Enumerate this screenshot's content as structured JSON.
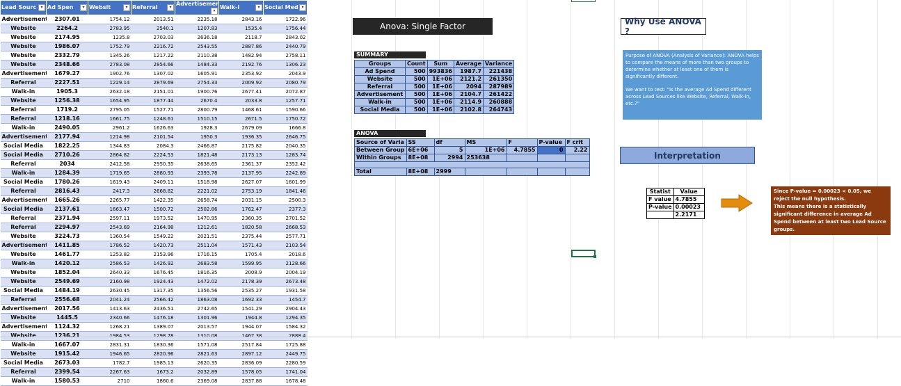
{
  "data_table": {
    "headers": [
      "Lead Sourc",
      "Ad Spen",
      "Websit",
      "Referral",
      "Advertisemer",
      "Walk-i",
      "Social Med"
    ],
    "rows": [
      [
        "Advertisement",
        "2307.01",
        "1754.12",
        "2013.51",
        "2235.18",
        "2843.16",
        "1722.96"
      ],
      [
        "Website",
        "2264.2",
        "2783.95",
        "2540.1",
        "1207.83",
        "1535.4",
        "1756.44"
      ],
      [
        "Website",
        "2174.95",
        "1235.8",
        "2703.03",
        "2636.18",
        "2118.7",
        "2843.02"
      ],
      [
        "Website",
        "1986.07",
        "1752.79",
        "2216.72",
        "2543.55",
        "2887.86",
        "2440.79"
      ],
      [
        "Website",
        "2332.79",
        "1345.26",
        "1217.22",
        "2110.38",
        "1482.94",
        "2758.11"
      ],
      [
        "Website",
        "2348.66",
        "2783.08",
        "2854.66",
        "1484.33",
        "2192.76",
        "1306.23"
      ],
      [
        "Advertisement",
        "1679.27",
        "1902.76",
        "1307.02",
        "1605.91",
        "2353.92",
        "2043.9"
      ],
      [
        "Referral",
        "2227.51",
        "1229.14",
        "2879.69",
        "2754.33",
        "2009.92",
        "2080.79"
      ],
      [
        "Walk-in",
        "1905.3",
        "2632.18",
        "2151.01",
        "1900.76",
        "2677.41",
        "2072.87"
      ],
      [
        "Website",
        "1256.38",
        "1654.95",
        "1877.44",
        "2670.4",
        "2033.8",
        "1257.71"
      ],
      [
        "Referral",
        "1719.2",
        "2795.05",
        "1527.71",
        "2800.79",
        "1468.61",
        "1590.66"
      ],
      [
        "Referral",
        "1218.16",
        "1661.75",
        "1248.61",
        "1510.15",
        "2671.5",
        "1750.72"
      ],
      [
        "Walk-in",
        "2490.05",
        "2961.2",
        "1626.63",
        "1928.3",
        "2679.09",
        "1666.8"
      ],
      [
        "Advertisement",
        "2177.94",
        "1214.98",
        "2101.54",
        "1950.3",
        "1936.35",
        "2646.75"
      ],
      [
        "Social Media",
        "1822.25",
        "1344.83",
        "2084.3",
        "2466.87",
        "2175.82",
        "2040.35"
      ],
      [
        "Social Media",
        "2710.26",
        "2864.82",
        "2224.53",
        "1821.48",
        "2173.13",
        "1283.74"
      ],
      [
        "Referral",
        "2034",
        "2412.58",
        "2950.35",
        "2638.65",
        "2361.37",
        "2352.42"
      ],
      [
        "Walk-in",
        "1284.39",
        "1719.65",
        "2880.93",
        "2393.78",
        "2137.95",
        "2242.89"
      ],
      [
        "Social Media",
        "1780.26",
        "1619.43",
        "2409.11",
        "1518.98",
        "2627.07",
        "1601.99"
      ],
      [
        "Referral",
        "2816.43",
        "2417.3",
        "2668.82",
        "2221.02",
        "2753.19",
        "1841.46"
      ],
      [
        "Advertisement",
        "1665.26",
        "2265.77",
        "1422.35",
        "2658.74",
        "2031.15",
        "2500.3"
      ],
      [
        "Social Media",
        "2137.61",
        "1663.47",
        "1500.72",
        "2502.86",
        "1762.47",
        "2377.3"
      ],
      [
        "Referral",
        "2371.94",
        "2597.11",
        "1973.52",
        "1470.95",
        "2360.35",
        "2701.52"
      ],
      [
        "Referral",
        "2294.97",
        "2543.69",
        "2164.98",
        "1212.61",
        "1820.58",
        "2668.53"
      ],
      [
        "Website",
        "3224.73",
        "1360.54",
        "1549.22",
        "2021.51",
        "2375.44",
        "2577.71"
      ],
      [
        "Advertisement",
        "1411.85",
        "1786.52",
        "1420.73",
        "2511.04",
        "1571.43",
        "2103.54"
      ],
      [
        "Website",
        "1461.77",
        "1253.82",
        "2153.96",
        "1716.15",
        "1705.4",
        "2018.6"
      ],
      [
        "Walk-in",
        "1420.12",
        "2586.53",
        "1426.92",
        "2683.58",
        "1599.95",
        "2128.66"
      ],
      [
        "Website",
        "1852.04",
        "2640.33",
        "1676.45",
        "1816.35",
        "2008.9",
        "2004.19"
      ],
      [
        "Website",
        "2549.69",
        "2160.98",
        "1924.43",
        "1472.02",
        "2178.39",
        "2673.48"
      ],
      [
        "Social Media",
        "1484.19",
        "2630.45",
        "1317.35",
        "1356.56",
        "2535.27",
        "1931.58"
      ],
      [
        "Referral",
        "2556.68",
        "2041.24",
        "2566.42",
        "1863.08",
        "1692.33",
        "1454.7"
      ],
      [
        "Advertisement",
        "2017.56",
        "1413.63",
        "2436.51",
        "2742.65",
        "1541.29",
        "2904.43"
      ],
      [
        "Website",
        "1445.5",
        "2340.66",
        "1476.18",
        "1301.96",
        "1944.8",
        "1294.35"
      ],
      [
        "Advertisement",
        "1124.32",
        "1268.21",
        "1389.07",
        "2013.57",
        "1944.07",
        "1584.32"
      ],
      [
        "Website",
        "1236.21",
        "1984.53",
        "1298.78",
        "1310.08",
        "1467.38",
        "2888.4"
      ],
      [
        "Walk-in",
        "1667.07",
        "2831.31",
        "1830.36",
        "1571.08",
        "2517.84",
        "1725.88"
      ],
      [
        "Website",
        "1915.42",
        "1946.65",
        "2820.96",
        "2821.63",
        "2897.12",
        "2449.75"
      ],
      [
        "Social Media",
        "2673.03",
        "1782.7",
        "1985.13",
        "2620.35",
        "2836.09",
        "2280.59"
      ],
      [
        "Referral",
        "2399.54",
        "2267.63",
        "1673.2",
        "2032.89",
        "1578.05",
        "1741.04"
      ],
      [
        "Walk-in",
        "1580.53",
        "2710",
        "1860.6",
        "2369.08",
        "2837.88",
        "1678.48"
      ]
    ]
  },
  "anova_title": "Anova: Single Factor",
  "summary": {
    "label": "SUMMARY",
    "headers": [
      "Groups",
      "Count",
      "Sum",
      "Average",
      "Variance"
    ],
    "rows": [
      [
        "Ad Spend",
        "500",
        "993836",
        "1987.7",
        "221438"
      ],
      [
        "Website",
        "500",
        "1E+06",
        "2121.2",
        "261350"
      ],
      [
        "Referral",
        "500",
        "1E+06",
        "2094",
        "287989"
      ],
      [
        "Advertisement",
        "500",
        "1E+06",
        "2104.7",
        "261422"
      ],
      [
        "Walk-in",
        "500",
        "1E+06",
        "2114.9",
        "260888"
      ],
      [
        "Social Media",
        "500",
        "1E+06",
        "2102.8",
        "264743"
      ]
    ]
  },
  "anova": {
    "label": "ANOVA",
    "headers": [
      "Source of Varia",
      "SS",
      "df",
      "MS",
      "F",
      "P-value",
      "F crit"
    ],
    "rows": [
      [
        "Between Group",
        "6E+06",
        "5",
        "1E+06",
        "4.7855",
        "0",
        "2.22"
      ],
      [
        "Within Groups",
        "8E+08",
        "2994",
        "253638",
        "",
        "",
        ""
      ]
    ],
    "total": [
      "Total",
      "8E+08",
      "2999",
      "",
      "",
      "",
      ""
    ]
  },
  "why": {
    "title": "Why Use ANOVA ?",
    "paragraph1": "Purpose of ANOVA (Analysis of Variance): ANOVA helps to compare the means of more than two groups to determine whether at least one of them is significantly different.",
    "paragraph2": "We want to test: \"Is the average Ad Spend different across Lead Sources like Website, Referral, Walk-in, etc.?\""
  },
  "interpretation": {
    "title": "Interpretation",
    "stat_headers": [
      "Statist",
      "Value"
    ],
    "stat_rows": [
      [
        "F value",
        "4.7855"
      ],
      [
        "P-value",
        "0.00023"
      ],
      [
        "",
        "2.2171"
      ]
    ],
    "conclusion1": "Since P-value = 0.00023 < 0.05, we reject the null hypothesis.",
    "conclusion2": "This means there is a statistically significant difference in average Ad Spend between at least two Lead Source groups."
  },
  "colors": {
    "header_blue": "#4472c4",
    "band_blue": "#d9e1f2",
    "panel_blue": "#5b9bd5",
    "conclusion_brown": "#8b3a0f",
    "arrow_orange": "#e48c0c"
  }
}
